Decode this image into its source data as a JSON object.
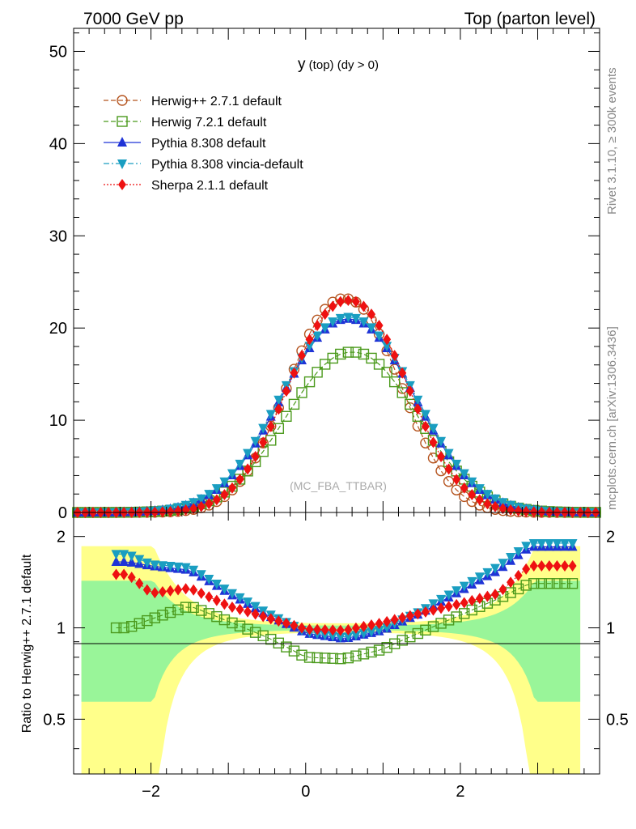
{
  "header": {
    "left": "7000 GeV pp",
    "right": "Top (parton level)"
  },
  "side_labels": {
    "rivet": "Rivet 3.1.10, ≥ 300k events",
    "mcplots": "mcplots.cern.ch [arXiv:1306.3436]"
  },
  "watermark": "(MC_FBA_TTBAR)",
  "chart_data": [
    {
      "type": "line",
      "title": "y (top) (dy > 0)",
      "title_main": "y",
      "title_rest": " (top) (dy > 0)",
      "xlabel": "",
      "ylabel": "",
      "xlim": [
        -3.0,
        3.8
      ],
      "ylim": [
        0,
        52.5
      ],
      "yticks": [
        0,
        10,
        20,
        30,
        40,
        50
      ],
      "legend_position": "top-left",
      "curve_params": [
        {
          "name": "Herwig++ 2.7.1 default",
          "amp": 23.2,
          "center": 0.5,
          "sigma": 0.72,
          "p": 2.15
        },
        {
          "name": "Herwig 7.2.1 default",
          "amp": 17.4,
          "center": 0.6,
          "sigma": 0.84,
          "p": 2.1
        },
        {
          "name": "Pythia 8.308 default",
          "amp": 21.0,
          "center": 0.55,
          "sigma": 0.85,
          "p": 2.1
        },
        {
          "name": "Pythia 8.308 vincia-default",
          "amp": 21.2,
          "center": 0.55,
          "sigma": 0.86,
          "p": 2.1
        },
        {
          "name": "Sherpa 2.1.1 default",
          "amp": 23.0,
          "center": 0.55,
          "sigma": 0.76,
          "p": 2.15
        }
      ],
      "series": [
        {
          "name": "Herwig++ 2.7.1 default",
          "color": "#b5541f",
          "marker": "open-circle",
          "line": "dashed"
        },
        {
          "name": "Herwig 7.2.1 default",
          "color": "#4b9a1c",
          "marker": "open-square",
          "line": "dashed"
        },
        {
          "name": "Pythia 8.308 default",
          "color": "#1f33d6",
          "marker": "triangle-up",
          "line": "solid"
        },
        {
          "name": "Pythia 8.308 vincia-default",
          "color": "#1a9ec1",
          "marker": "triangle-down",
          "line": "dashdot"
        },
        {
          "name": "Sherpa 2.1.1 default",
          "color": "#ee1111",
          "marker": "diamond",
          "line": "dotted"
        }
      ]
    },
    {
      "type": "line",
      "title": "",
      "xlabel": "",
      "ylabel": "Ratio to Herwig++ 2.7.1 default",
      "xlim": [
        -3.0,
        3.8
      ],
      "ylim": [
        0.33,
        2.4
      ],
      "yscale": "log",
      "yticks": [
        0.5,
        1,
        2
      ],
      "ytick_labels": [
        "0.5",
        "1",
        "2"
      ],
      "xticks": [
        -2,
        0,
        2
      ],
      "xtick_labels": [
        "−2",
        "0",
        "2"
      ],
      "reference_line": 1,
      "band_colors": {
        "inner": "#99f599",
        "outer": "#ffff8a"
      },
      "ratio_anchor_points": [
        {
          "name": "Herwig 7.2.1 default",
          "x": [
            -2.3,
            -1.5,
            -1.0,
            -0.5,
            0.0,
            0.5,
            1.0,
            1.5,
            2.0,
            2.5,
            2.9
          ],
          "y": [
            1.0,
            1.18,
            1.05,
            0.93,
            0.8,
            0.79,
            0.85,
            0.97,
            1.1,
            1.25,
            1.4
          ]
        },
        {
          "name": "Pythia 8.308 default",
          "x": [
            -2.3,
            -2.0,
            -1.5,
            -1.0,
            -0.5,
            0.0,
            0.5,
            1.0,
            1.5,
            2.0,
            2.5,
            2.9
          ],
          "y": [
            1.65,
            1.6,
            1.55,
            1.3,
            1.1,
            0.96,
            0.92,
            0.98,
            1.12,
            1.32,
            1.55,
            1.85
          ]
        },
        {
          "name": "Pythia 8.308 vincia-default",
          "x": [
            -2.3,
            -2.0,
            -1.5,
            -1.0,
            -0.5,
            0.0,
            0.5,
            1.0,
            1.5,
            2.0,
            2.5,
            2.9
          ],
          "y": [
            1.75,
            1.62,
            1.58,
            1.32,
            1.12,
            0.97,
            0.93,
            0.99,
            1.14,
            1.35,
            1.6,
            1.9
          ]
        },
        {
          "name": "Sherpa 2.1.1 default",
          "x": [
            -2.3,
            -2.0,
            -1.5,
            -1.0,
            -0.5,
            0.0,
            0.5,
            1.0,
            1.5,
            2.0,
            2.5,
            2.9
          ],
          "y": [
            1.5,
            1.3,
            1.35,
            1.18,
            1.08,
            0.99,
            0.98,
            1.04,
            1.12,
            1.2,
            1.3,
            1.6
          ]
        }
      ]
    }
  ]
}
